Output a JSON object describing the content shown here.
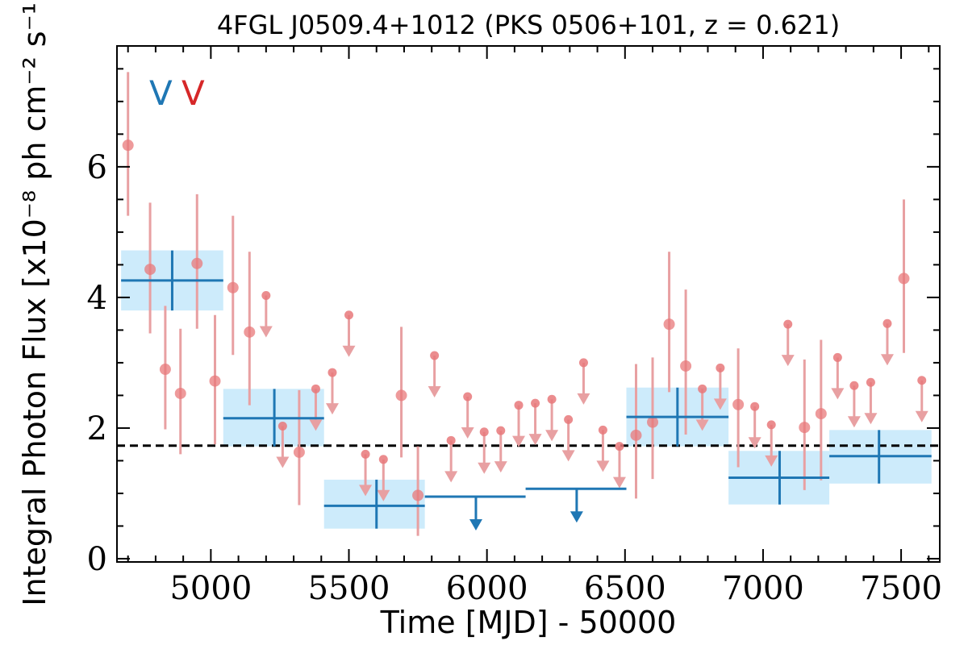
{
  "chart_data": {
    "type": "scatter",
    "title": "4FGL J0509.4+1012 (PKS 0506+101, z = 0.621)",
    "xlabel": "Time [MJD] - 50000",
    "ylabel": "Integral Photon Flux [x10⁻⁸ ph cm⁻² s⁻¹]",
    "xlim": [
      4660,
      7640
    ],
    "ylim": [
      -0.05,
      7.85
    ],
    "xticks": [
      5000,
      5500,
      6000,
      6500,
      7000,
      7500
    ],
    "yticks": [
      0,
      2,
      4,
      6
    ],
    "grid": false,
    "mean_flux": 1.73,
    "flags": [
      {
        "text": "V",
        "color": "#1f77b4"
      },
      {
        "text": "V",
        "color": "#d62728"
      }
    ],
    "colors": {
      "fine_points": "#e8787a",
      "fine_errors": "#e8a0a2",
      "bayesian_blocks": "#1f77b4",
      "block_fill": "#cdebfb",
      "mean_line": "#000000"
    },
    "series": [
      {
        "binning": "fine",
        "detections": [
          {
            "x": 4700,
            "y": 6.33,
            "ylo": 5.25,
            "yhi": 7.45
          },
          {
            "x": 4780,
            "y": 4.43,
            "ylo": 3.45,
            "yhi": 5.45
          },
          {
            "x": 4835,
            "y": 2.9,
            "ylo": 1.98,
            "yhi": 3.87
          },
          {
            "x": 4890,
            "y": 2.53,
            "ylo": 1.6,
            "yhi": 3.52
          },
          {
            "x": 4950,
            "y": 4.52,
            "ylo": 3.52,
            "yhi": 5.58
          },
          {
            "x": 5015,
            "y": 2.72,
            "ylo": 1.75,
            "yhi": 3.73
          },
          {
            "x": 5080,
            "y": 4.15,
            "ylo": 3.12,
            "yhi": 5.25
          },
          {
            "x": 5140,
            "y": 3.47,
            "ylo": 2.35,
            "yhi": 4.7
          },
          {
            "x": 5320,
            "y": 1.63,
            "ylo": 0.82,
            "yhi": 2.58
          },
          {
            "x": 5690,
            "y": 2.5,
            "ylo": 1.55,
            "yhi": 3.55
          },
          {
            "x": 5750,
            "y": 0.97,
            "ylo": 0.35,
            "yhi": 1.72
          },
          {
            "x": 6540,
            "y": 1.89,
            "ylo": 0.92,
            "yhi": 2.98
          },
          {
            "x": 6600,
            "y": 2.09,
            "ylo": 1.22,
            "yhi": 3.08
          },
          {
            "x": 6660,
            "y": 3.59,
            "ylo": 2.55,
            "yhi": 4.7
          },
          {
            "x": 6720,
            "y": 2.95,
            "ylo": 1.9,
            "yhi": 4.12
          },
          {
            "x": 6910,
            "y": 2.36,
            "ylo": 1.4,
            "yhi": 3.22
          },
          {
            "x": 7150,
            "y": 2.01,
            "ylo": 1.05,
            "yhi": 3.05
          },
          {
            "x": 7210,
            "y": 2.22,
            "ylo": 1.2,
            "yhi": 3.35
          },
          {
            "x": 7510,
            "y": 4.29,
            "ylo": 3.15,
            "yhi": 5.5
          }
        ],
        "upper_limits": [
          {
            "x": 5200,
            "y": 4.03
          },
          {
            "x": 5260,
            "y": 2.03
          },
          {
            "x": 5380,
            "y": 2.6
          },
          {
            "x": 5440,
            "y": 2.85
          },
          {
            "x": 5500,
            "y": 3.73
          },
          {
            "x": 5560,
            "y": 1.6
          },
          {
            "x": 5625,
            "y": 1.52
          },
          {
            "x": 5810,
            "y": 3.11
          },
          {
            "x": 5870,
            "y": 1.81
          },
          {
            "x": 5930,
            "y": 2.48
          },
          {
            "x": 5990,
            "y": 1.94
          },
          {
            "x": 6050,
            "y": 1.96
          },
          {
            "x": 6115,
            "y": 2.35
          },
          {
            "x": 6175,
            "y": 2.38
          },
          {
            "x": 6235,
            "y": 2.44
          },
          {
            "x": 6295,
            "y": 2.13
          },
          {
            "x": 6350,
            "y": 3.0
          },
          {
            "x": 6420,
            "y": 1.97
          },
          {
            "x": 6480,
            "y": 1.72
          },
          {
            "x": 6780,
            "y": 2.6
          },
          {
            "x": 6845,
            "y": 2.92
          },
          {
            "x": 6970,
            "y": 2.33
          },
          {
            "x": 7030,
            "y": 2.05
          },
          {
            "x": 7090,
            "y": 3.59
          },
          {
            "x": 7270,
            "y": 3.08
          },
          {
            "x": 7330,
            "y": 2.65
          },
          {
            "x": 7390,
            "y": 2.7
          },
          {
            "x": 7450,
            "y": 3.6
          },
          {
            "x": 7575,
            "y": 2.73
          }
        ]
      },
      {
        "binning": "bayesian blocks",
        "blocks": [
          {
            "x0": 4675,
            "x1": 5045,
            "x": 4860,
            "y": 4.26,
            "ylo": 3.8,
            "yhi": 4.72,
            "upper_limit": false
          },
          {
            "x0": 5045,
            "x1": 5410,
            "x": 5230,
            "y": 2.15,
            "ylo": 1.72,
            "yhi": 2.6,
            "upper_limit": false
          },
          {
            "x0": 5410,
            "x1": 5775,
            "x": 5600,
            "y": 0.81,
            "ylo": 0.46,
            "yhi": 1.21,
            "upper_limit": false
          },
          {
            "x0": 5775,
            "x1": 6140,
            "x": 5960,
            "y": 0.95,
            "upper_limit": true
          },
          {
            "x0": 6140,
            "x1": 6505,
            "x": 6325,
            "y": 1.07,
            "upper_limit": true
          },
          {
            "x0": 6505,
            "x1": 6875,
            "x": 6690,
            "y": 2.17,
            "ylo": 1.72,
            "yhi": 2.62,
            "upper_limit": false
          },
          {
            "x0": 6875,
            "x1": 7240,
            "x": 7060,
            "y": 1.24,
            "ylo": 0.83,
            "yhi": 1.65,
            "upper_limit": false
          },
          {
            "x0": 7240,
            "x1": 7610,
            "x": 7420,
            "y": 1.57,
            "ylo": 1.15,
            "yhi": 1.97,
            "upper_limit": false
          }
        ]
      }
    ]
  }
}
